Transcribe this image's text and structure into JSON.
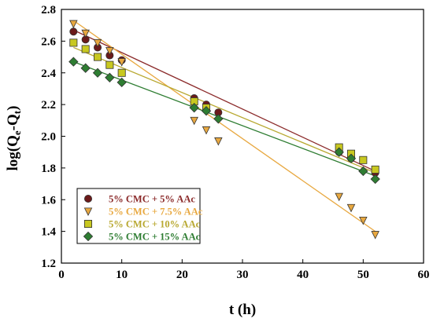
{
  "chart_data": {
    "type": "scatter",
    "title": "",
    "xlabel": "t (h)",
    "ylabel_parts": [
      "log(Q",
      "e",
      "-Q",
      "t",
      ")"
    ],
    "xlim": [
      0,
      60
    ],
    "ylim": [
      1.2,
      2.8
    ],
    "xticks": [
      "0",
      "10",
      "20",
      "30",
      "40",
      "50",
      "60"
    ],
    "yticks": [
      "1.2",
      "1.4",
      "1.6",
      "1.8",
      "2.0",
      "2.2",
      "2.4",
      "2.6",
      "2.8"
    ],
    "grid": false,
    "legend_position": "bottom-left",
    "series": [
      {
        "name": "5% CMC + 5% AAc",
        "marker": "circle",
        "color": "#6B1A1A",
        "line_color": "#8B2A2A",
        "x": [
          2,
          4,
          6,
          8,
          10,
          22,
          24,
          26,
          46,
          48,
          52
        ],
        "y": [
          2.66,
          2.61,
          2.56,
          2.51,
          2.48,
          2.24,
          2.2,
          2.15,
          1.9,
          1.86,
          1.77
        ],
        "fit": {
          "x": [
            2,
            52
          ],
          "y": [
            2.67,
            1.78
          ]
        }
      },
      {
        "name": "5% CMC + 7.5% AAc",
        "marker": "triangle-down",
        "color": "#E8A840",
        "line_color": "#E8A840",
        "x": [
          2,
          4,
          6,
          8,
          10,
          22,
          24,
          26,
          46,
          48,
          50,
          52
        ],
        "y": [
          2.71,
          2.65,
          2.59,
          2.54,
          2.47,
          2.1,
          2.04,
          1.97,
          1.62,
          1.55,
          1.47,
          1.38
        ],
        "fit": {
          "x": [
            2,
            52
          ],
          "y": [
            2.73,
            1.4
          ]
        }
      },
      {
        "name": "5% CMC + 10% AAc",
        "marker": "square",
        "color": "#C8C820",
        "line_color": "#B8A830",
        "x": [
          2,
          4,
          6,
          8,
          10,
          22,
          24,
          46,
          48,
          50,
          52
        ],
        "y": [
          2.59,
          2.55,
          2.5,
          2.45,
          2.4,
          2.22,
          2.18,
          1.93,
          1.89,
          1.85,
          1.79
        ],
        "fit": {
          "x": [
            2,
            52
          ],
          "y": [
            2.56,
            1.77
          ]
        }
      },
      {
        "name": "5% CMC + 15% AAc",
        "marker": "diamond",
        "color": "#2E7D32",
        "line_color": "#2E7D32",
        "x": [
          2,
          4,
          6,
          8,
          10,
          22,
          24,
          26,
          46,
          48,
          50,
          52
        ],
        "y": [
          2.47,
          2.43,
          2.4,
          2.37,
          2.34,
          2.18,
          2.16,
          2.11,
          1.9,
          1.86,
          1.78,
          1.73
        ],
        "fit": {
          "x": [
            2,
            52
          ],
          "y": [
            2.47,
            1.75
          ]
        }
      }
    ]
  }
}
